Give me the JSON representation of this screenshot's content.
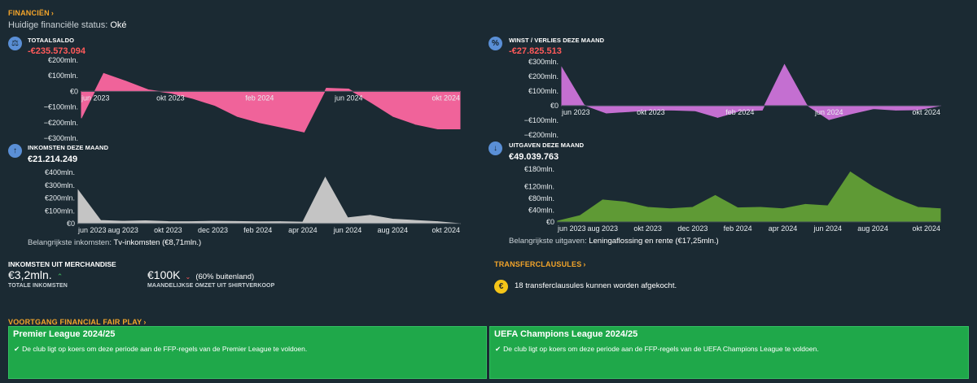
{
  "header": {
    "section_link": "FINANCIËN",
    "status_label": "Huidige financiële status:",
    "status_value": "Oké"
  },
  "panels": {
    "total_balance": {
      "title": "TOTAALSALDO",
      "value": "-€235.573.094",
      "icon": "balance-scale-icon"
    },
    "profit_loss": {
      "title": "WINST / VERLIES DEZE MAAND",
      "value": "-€27.825.513",
      "icon": "percent-icon"
    },
    "income": {
      "title": "INKOMSTEN DEZE MAAND",
      "value": "€21.214.249",
      "icon": "arrow-up-icon",
      "footnote_label": "Belangrijkste inkomsten:",
      "footnote_value": "Tv-inkomsten (€8,71mln.)"
    },
    "expenses": {
      "title": "UITGAVEN DEZE MAAND",
      "value": "€49.039.763",
      "icon": "arrow-down-icon",
      "footnote_label": "Belangrijkste uitgaven:",
      "footnote_value": "Leningaflossing en rente (€17,25mln.)"
    }
  },
  "merchandise": {
    "title": "INKOMSTEN UIT MERCHANDISE",
    "total_value": "€3,2mln.",
    "total_caption": "TOTALE INKOMSTEN",
    "monthly_value": "€100K",
    "monthly_note": "(60% buitenland)",
    "monthly_caption": "MAANDELIJKSE OMZET UIT SHIRTVERKOOP"
  },
  "transfer_clauses": {
    "title": "TRANSFERCLAUSULES",
    "text": "18 transferclausules kunnen worden afgekocht."
  },
  "ffp": {
    "title": "VOORTGANG FINANCIAL FAIR PLAY",
    "boxes": [
      {
        "name": "Premier League 2024/25",
        "text": "De club ligt op koers om deze periode aan de FFP-regels van de Premier League te voldoen."
      },
      {
        "name": "UEFA Champions League 2024/25",
        "text": "De club ligt op koers om deze periode aan de FFP-regels van de UEFA Champions League te voldoen."
      }
    ]
  },
  "chart_data": [
    {
      "id": "total_balance",
      "type": "area",
      "color": "#f0639a",
      "baseline_at_zero": true,
      "x": [
        0,
        1,
        2,
        3,
        4,
        5,
        6,
        7,
        8,
        9,
        10,
        11,
        12,
        13,
        14,
        15,
        16,
        17
      ],
      "values": [
        -170,
        115,
        65,
        10,
        -10,
        -45,
        -90,
        -160,
        -200,
        -230,
        -260,
        20,
        15,
        -70,
        -160,
        -210,
        -240,
        -240
      ],
      "ylim": [
        -300,
        200
      ],
      "yticks": [
        200,
        100,
        0,
        -100,
        -200,
        -300
      ],
      "ytick_labels": [
        "€200mln.",
        "€100mln.",
        "€0",
        "−€100mln.",
        "−€200mln.",
        "−€300mln."
      ],
      "xtick_positions": [
        0,
        4,
        8,
        12,
        17
      ],
      "xtick_labels": [
        "jun 2023",
        "okt 2023",
        "feb 2024",
        "jun 2024",
        "okt 2024"
      ]
    },
    {
      "id": "profit_loss",
      "type": "area",
      "color": "#c46fd1",
      "baseline_at_zero": true,
      "x": [
        0,
        1,
        2,
        3,
        4,
        5,
        6,
        7,
        8,
        9,
        10,
        11,
        12,
        13,
        14,
        15,
        16,
        17
      ],
      "values": [
        260,
        5,
        -50,
        -40,
        -30,
        -30,
        -35,
        -80,
        -35,
        -30,
        280,
        5,
        -95,
        -55,
        -20,
        -30,
        -28,
        0
      ],
      "ylim": [
        -200,
        300
      ],
      "yticks": [
        300,
        200,
        100,
        0,
        -100,
        -200
      ],
      "ytick_labels": [
        "€300mln.",
        "€200mln.",
        "€100mln.",
        "€0",
        "−€100mln.",
        "−€200mln."
      ],
      "xtick_positions": [
        0,
        4,
        8,
        12,
        17
      ],
      "xtick_labels": [
        "jun 2023",
        "okt 2023",
        "feb 2024",
        "jun 2024",
        "okt 2024"
      ]
    },
    {
      "id": "income",
      "type": "area",
      "color": "#c4c4c4",
      "baseline_at_zero": false,
      "x": [
        0,
        1,
        2,
        3,
        4,
        5,
        6,
        7,
        8,
        9,
        10,
        11,
        12,
        13,
        14,
        15,
        16,
        17
      ],
      "values": [
        260,
        25,
        18,
        22,
        16,
        15,
        18,
        17,
        14,
        15,
        12,
        360,
        45,
        65,
        35,
        25,
        15,
        0
      ],
      "ylim": [
        0,
        400
      ],
      "yticks": [
        400,
        300,
        200,
        100,
        0
      ],
      "ytick_labels": [
        "€400mln.",
        "€300mln.",
        "€200mln.",
        "€100mln.",
        "€0"
      ],
      "xtick_positions": [
        0,
        2,
        4,
        6,
        8,
        10,
        12,
        14,
        17
      ],
      "xtick_labels": [
        "jun 2023",
        "aug 2023",
        "okt 2023",
        "dec 2023",
        "feb 2024",
        "apr 2024",
        "jun 2024",
        "aug 2024",
        "okt 2024"
      ]
    },
    {
      "id": "expenses",
      "type": "area",
      "color": "#5f9a35",
      "baseline_at_zero": false,
      "x": [
        0,
        1,
        2,
        3,
        4,
        5,
        6,
        7,
        8,
        9,
        10,
        11,
        12,
        13,
        14,
        15,
        16,
        17
      ],
      "values": [
        3,
        22,
        75,
        68,
        50,
        45,
        50,
        90,
        48,
        50,
        45,
        60,
        55,
        170,
        120,
        80,
        50,
        45
      ],
      "ylim": [
        0,
        180
      ],
      "yticks": [
        180,
        120,
        80,
        40,
        0
      ],
      "ytick_labels": [
        "€180mln.",
        "€120mln.",
        "€80mln.",
        "€40mln.",
        "€0"
      ],
      "xtick_positions": [
        0,
        2,
        4,
        6,
        8,
        10,
        12,
        14,
        17
      ],
      "xtick_labels": [
        "jun 2023",
        "aug 2023",
        "okt 2023",
        "dec 2023",
        "feb 2024",
        "apr 2024",
        "jun 2024",
        "aug 2024",
        "okt 2024"
      ]
    }
  ]
}
